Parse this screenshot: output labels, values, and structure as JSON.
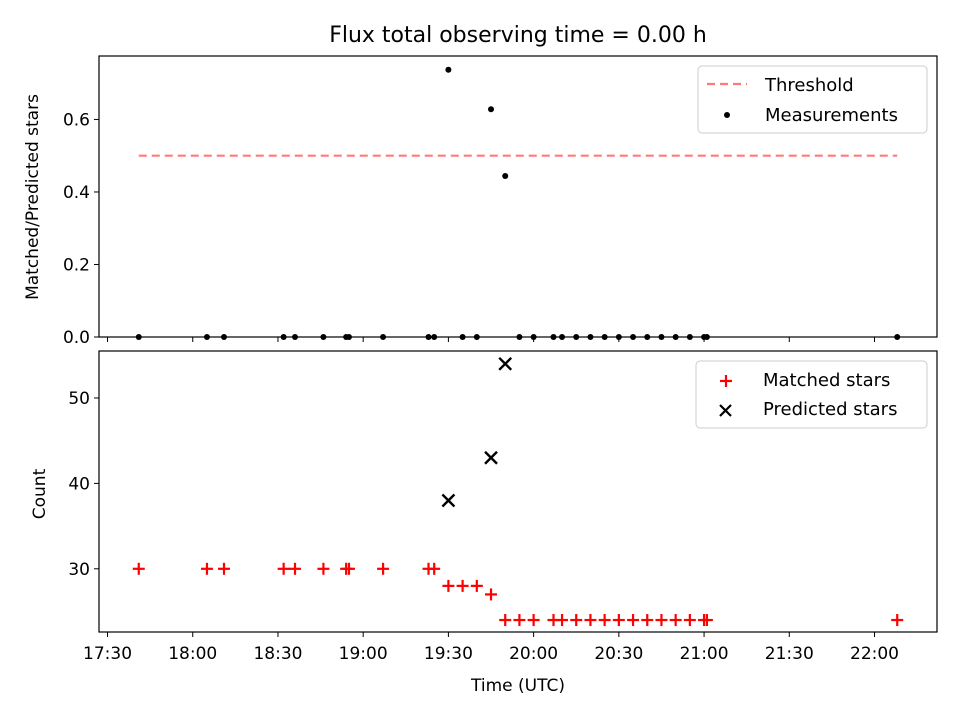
{
  "chart_data": [
    {
      "type": "line",
      "title": "Flux total observing time = 0.00 h",
      "xlabel": "",
      "ylabel": "Matched/Predicted stars",
      "xlim": [
        "17:27",
        "22:22"
      ],
      "ylim": [
        0,
        0.775
      ],
      "yticks": [
        0.0,
        0.2,
        0.4,
        0.6
      ],
      "ytick_labels": [
        "0.0",
        "0.2",
        "0.4",
        "0.6"
      ],
      "legend_position": "upper right",
      "series": [
        {
          "name": "Threshold",
          "style": "dashed",
          "color": "#ff7a7a",
          "x": [
            "17:41",
            "22:08"
          ],
          "y": [
            0.5,
            0.5
          ]
        },
        {
          "name": "Measurements",
          "style": "points",
          "color": "#000000",
          "x": [
            "17:41",
            "18:05",
            "18:11",
            "18:32",
            "18:36",
            "18:46",
            "18:54",
            "18:55",
            "19:07",
            "19:23",
            "19:25",
            "19:30",
            "19:35",
            "19:40",
            "19:45",
            "19:50",
            "19:55",
            "20:00",
            "20:07",
            "20:10",
            "20:15",
            "20:20",
            "20:25",
            "20:30",
            "20:35",
            "20:40",
            "20:45",
            "20:50",
            "20:55",
            "21:00",
            "21:01",
            "22:08"
          ],
          "y": [
            0,
            0,
            0,
            0,
            0,
            0,
            0,
            0,
            0,
            0,
            0,
            0.737,
            0,
            0,
            0.628,
            0.444,
            0,
            0,
            0,
            0,
            0,
            0,
            0,
            0,
            0,
            0,
            0,
            0,
            0,
            0,
            0,
            0
          ]
        }
      ]
    },
    {
      "type": "scatter",
      "title": "",
      "xlabel": "Time (UTC)",
      "ylabel": "Count",
      "xlim": [
        "17:27",
        "22:22"
      ],
      "ylim": [
        22.6,
        55.5
      ],
      "yticks": [
        30,
        40,
        50
      ],
      "ytick_labels": [
        "30",
        "40",
        "50"
      ],
      "xticks": [
        "17:30",
        "18:00",
        "18:30",
        "19:00",
        "19:30",
        "20:00",
        "20:30",
        "21:00",
        "21:30",
        "22:00"
      ],
      "xtick_labels": [
        "17:30",
        "18:00",
        "18:30",
        "19:00",
        "19:30",
        "20:00",
        "20:30",
        "21:00",
        "21:30",
        "22:00"
      ],
      "legend_position": "upper right",
      "series": [
        {
          "name": "Matched stars",
          "marker": "+",
          "color": "#ff0000",
          "x": [
            "17:41",
            "18:05",
            "18:11",
            "18:32",
            "18:36",
            "18:46",
            "18:54",
            "18:55",
            "19:07",
            "19:23",
            "19:25",
            "19:30",
            "19:35",
            "19:40",
            "19:45",
            "19:50",
            "19:55",
            "20:00",
            "20:07",
            "20:10",
            "20:15",
            "20:20",
            "20:25",
            "20:30",
            "20:35",
            "20:40",
            "20:45",
            "20:50",
            "20:55",
            "21:00",
            "21:01",
            "22:08"
          ],
          "y": [
            30,
            30,
            30,
            30,
            30,
            30,
            30,
            30,
            30,
            30,
            30,
            28,
            28,
            28,
            27,
            24,
            24,
            24,
            24,
            24,
            24,
            24,
            24,
            24,
            24,
            24,
            24,
            24,
            24,
            24,
            24,
            24
          ]
        },
        {
          "name": "Predicted stars",
          "marker": "x",
          "color": "#000000",
          "x": [
            "19:30",
            "19:45",
            "19:50"
          ],
          "y": [
            38,
            43,
            54
          ]
        }
      ]
    }
  ]
}
